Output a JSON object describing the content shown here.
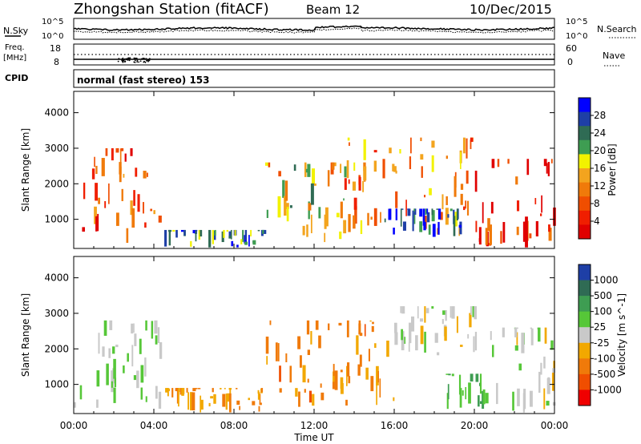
{
  "header": {
    "station": "Zhongshan Station (fitACF)",
    "beam": "Beam 12",
    "date": "10/Dec/2015"
  },
  "noise_panel": {
    "left_label": "N.Sky",
    "left_ticks": [
      "10^5",
      "10^0"
    ],
    "right_label": "N.Search",
    "right_ticks": [
      "10^5",
      "10^0"
    ]
  },
  "freq_panel": {
    "left_label": "Freq.",
    "left_unit": "[MHz]",
    "left_ticks": [
      "18",
      "8"
    ],
    "right_label": "Nave",
    "right_ticks": [
      "60",
      "0"
    ]
  },
  "cpid": {
    "label": "CPID",
    "value": "normal (fast stereo) 153"
  },
  "x_axis": {
    "label": "Time UT",
    "ticks": [
      "00:00",
      "04:00",
      "08:00",
      "12:00",
      "16:00",
      "20:00",
      "00:00"
    ],
    "range_hours": [
      0,
      24
    ]
  },
  "panels": [
    {
      "ylabel": "Slant Range [km]",
      "yticks": [
        "4000",
        "3000",
        "2000",
        "1000"
      ],
      "colorbar_label": "Power [dB]",
      "colorbar_ticks": [
        "28",
        "24",
        "20",
        "16",
        "12",
        "8",
        "4"
      ],
      "colors": [
        "#0000ff",
        "#1e3fa6",
        "#2f6b54",
        "#3e9d52",
        "#f2f200",
        "#f3a41e",
        "#f07a0a",
        "#f04e00",
        "#f01e00",
        "#e00000"
      ]
    },
    {
      "ylabel": "Slant Range [km]",
      "yticks": [
        "4000",
        "3000",
        "2000",
        "1000"
      ],
      "colorbar_label": "Velocity [m s^-1]",
      "colorbar_ticks": [
        "1000",
        "500",
        "100",
        "25",
        "-25",
        "-100",
        "-500",
        "-1000"
      ],
      "colors": [
        "#1e3fa6",
        "#2f6b54",
        "#3e9d52",
        "#56c738",
        "#c9c9c9",
        "#f2a800",
        "#f07a0a",
        "#f04e00",
        "#f00000"
      ]
    }
  ],
  "chart_data": [
    {
      "type": "heatmap",
      "title": "Zhongshan Station (fitACF) Beam 12 10/Dec/2015",
      "xlabel": "Time UT",
      "ylabel": "Slant Range [km]",
      "xlim": [
        "00:00",
        "00:00"
      ],
      "ylim": [
        180,
        4600
      ],
      "value_label": "Power [dB]",
      "value_range": [
        0,
        32
      ],
      "regions": [
        {
          "t_start": 0.0,
          "t_end": 4.3,
          "range_start": 300,
          "range_end": 3000,
          "dominant_power_db": 8
        },
        {
          "t_start": 4.5,
          "t_end": 9.5,
          "range_start": 180,
          "range_end": 700,
          "dominant_power_db": 24
        },
        {
          "t_start": 9.5,
          "t_end": 14.5,
          "range_start": 300,
          "range_end": 2600,
          "dominant_power_db": 16
        },
        {
          "t_start": 13.5,
          "t_end": 20.0,
          "range_start": 500,
          "range_end": 3300,
          "dominant_power_db": 12
        },
        {
          "t_start": 15.5,
          "t_end": 19.5,
          "range_start": 500,
          "range_end": 1300,
          "dominant_power_db": 26
        },
        {
          "t_start": 20.0,
          "t_end": 24.0,
          "range_start": 200,
          "range_end": 2700,
          "dominant_power_db": 6
        }
      ]
    },
    {
      "type": "heatmap",
      "title": "Zhongshan Station (fitACF) Beam 12 10/Dec/2015",
      "xlabel": "Time UT",
      "ylabel": "Slant Range [km]",
      "xlim": [
        "00:00",
        "00:00"
      ],
      "ylim": [
        180,
        4600
      ],
      "value_label": "Velocity [m s^-1]",
      "value_range": [
        -1000,
        1000
      ],
      "regions": [
        {
          "t_start": 0.0,
          "t_end": 4.3,
          "range_start": 300,
          "range_end": 2800,
          "dominant_velocity": 100
        },
        {
          "t_start": 4.5,
          "t_end": 9.5,
          "range_start": 180,
          "range_end": 900,
          "dominant_velocity": -300
        },
        {
          "t_start": 9.5,
          "t_end": 16.0,
          "range_start": 300,
          "range_end": 2800,
          "dominant_velocity": -400
        },
        {
          "t_start": 16.0,
          "t_end": 20.0,
          "range_start": 1800,
          "range_end": 3200,
          "dominant_velocity": 0
        },
        {
          "t_start": 18.5,
          "t_end": 20.5,
          "range_start": 300,
          "range_end": 1300,
          "dominant_velocity": 300
        },
        {
          "t_start": 20.0,
          "t_end": 24.0,
          "range_start": 200,
          "range_end": 2600,
          "dominant_velocity": 0
        }
      ]
    }
  ]
}
